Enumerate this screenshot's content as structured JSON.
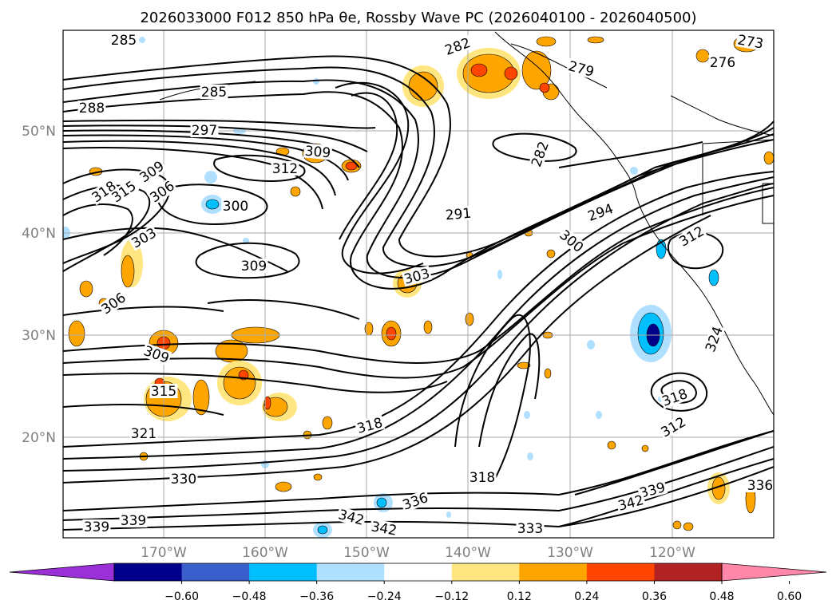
{
  "title": "2026033000 F012 850 hPa θe, Rossby Wave PC (2026040100 - 2026040500)",
  "map": {
    "lon_ticks": [
      "170°W",
      "160°W",
      "150°W",
      "140°W",
      "130°W",
      "120°W"
    ],
    "lat_ticks": [
      "50°N",
      "40°N",
      "30°N",
      "20°N"
    ],
    "contour_labels": [
      "285",
      "285",
      "282",
      "279",
      "273",
      "276",
      "288",
      "297",
      "309",
      "312",
      "318",
      "315",
      "309",
      "306",
      "300",
      "303",
      "309",
      "306",
      "291",
      "294",
      "282",
      "300",
      "303",
      "312",
      "309",
      "315",
      "321",
      "318",
      "330",
      "318",
      "336",
      "342",
      "339",
      "342",
      "339",
      "333",
      "339",
      "342",
      "336",
      "318",
      "312",
      "324"
    ],
    "colors": {
      "contour": "#000000",
      "grid": "#aaaaaa",
      "coastline": "#000000"
    }
  },
  "colorbar": {
    "ticks": [
      "−0.60",
      "−0.48",
      "−0.36",
      "−0.24",
      "−0.12",
      "0.12",
      "0.24",
      "0.36",
      "0.48",
      "0.60"
    ],
    "bins": [
      "#9b30d9",
      "#00008b",
      "#3a5fcd",
      "#00bfff",
      "#b0e0ff",
      "#ffffff",
      "#ffe680",
      "#ffa500",
      "#ff4500",
      "#b22222",
      "#ff88aa"
    ],
    "extend": "both"
  }
}
